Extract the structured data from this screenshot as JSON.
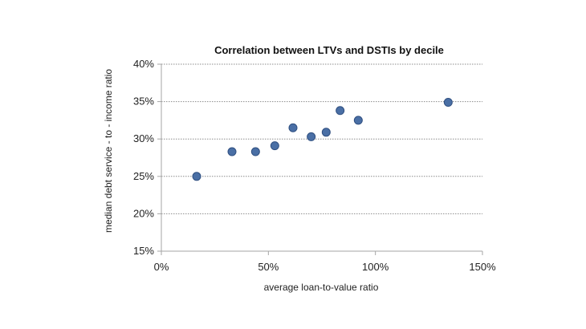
{
  "chart_data": {
    "type": "scatter",
    "title": "Correlation between LTVs and DSTIs by decile",
    "xlabel": "average  loan-to-value ratio",
    "ylabel": "median debt service - to - income ratio",
    "xlim": [
      0,
      150
    ],
    "ylim": [
      15,
      40
    ],
    "x_ticks": [
      0,
      50,
      100,
      150
    ],
    "y_ticks": [
      15,
      20,
      25,
      30,
      35,
      40
    ],
    "x_tick_labels": [
      "0%",
      "50%",
      "100%",
      "150%"
    ],
    "y_tick_labels": [
      "15%",
      "20%",
      "25%",
      "30%",
      "35%",
      "40%"
    ],
    "grid": "horizontal",
    "legend": "none",
    "marker_color": "#4a6fa5",
    "marker_edge_color": "#2f4f80",
    "gridline_color": "#8c8c8c",
    "axis_color": "#a6a6a6",
    "series": [
      {
        "x": [
          16.5,
          33,
          44,
          53,
          61.5,
          70,
          77,
          83.5,
          92,
          134
        ],
        "y": [
          25.0,
          28.3,
          28.3,
          29.1,
          31.5,
          30.3,
          30.9,
          33.8,
          32.5,
          34.9
        ]
      }
    ]
  }
}
